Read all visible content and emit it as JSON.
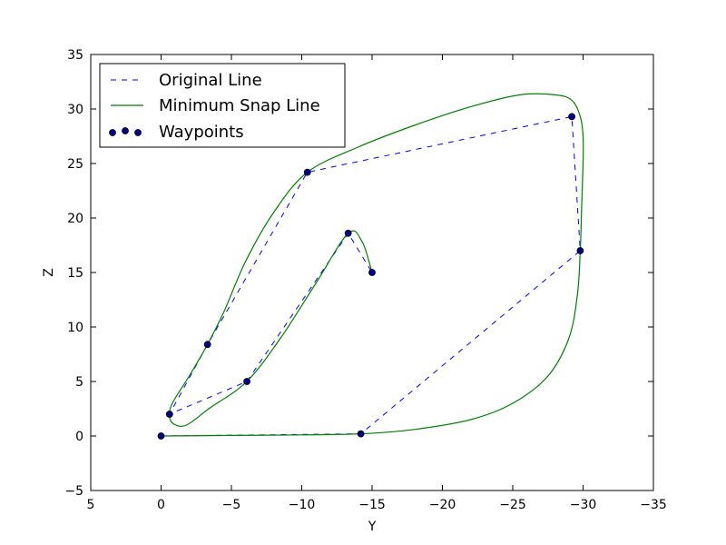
{
  "chart_data": {
    "type": "line",
    "xlabel": "Y",
    "ylabel": "Z",
    "xlim": [
      5,
      -35
    ],
    "ylim": [
      -5,
      35
    ],
    "xticks": [
      5,
      0,
      -5,
      -10,
      -15,
      -20,
      -25,
      -30,
      -35
    ],
    "yticks": [
      -5,
      0,
      5,
      10,
      15,
      20,
      25,
      30,
      35
    ],
    "grid": false,
    "legend_position": "top-left",
    "series": [
      {
        "name": "Original Line",
        "kind": "dashed-line",
        "color": "#0000ff",
        "x": [
          0,
          -14.2,
          -29.8,
          -29.2,
          -10.4,
          -3.3,
          -0.6,
          -6.1,
          -13.3,
          -15.0
        ],
        "y": [
          0,
          0.2,
          17.0,
          29.3,
          24.2,
          8.4,
          2.0,
          5.0,
          18.6,
          15.0
        ]
      },
      {
        "name": "Minimum Snap Line",
        "kind": "solid-line",
        "color": "#008000",
        "x": [
          0,
          -5,
          -10,
          -14.2,
          -18,
          -22,
          -25,
          -27.5,
          -29.0,
          -29.6,
          -29.8,
          -29.9,
          -30.0,
          -30.0,
          -29.8,
          -29.2,
          -28.0,
          -25.5,
          -22.0,
          -18.0,
          -14.0,
          -10.4,
          -8.0,
          -6.0,
          -4.5,
          -3.3,
          -2.0,
          -0.8,
          -0.6,
          -0.9,
          -1.8,
          -3.5,
          -6.1,
          -8.5,
          -11.0,
          -13.3,
          -14.3,
          -15.0
        ],
        "y": [
          0,
          0.05,
          0.1,
          0.2,
          0.6,
          1.5,
          3.0,
          5.5,
          9.0,
          13.0,
          17.0,
          21.0,
          25.0,
          27.5,
          29.3,
          30.8,
          31.3,
          31.3,
          30.2,
          28.5,
          26.5,
          24.2,
          20.5,
          16.0,
          11.5,
          8.4,
          5.5,
          3.0,
          1.8,
          1.1,
          1.0,
          2.6,
          5.0,
          9.0,
          14.0,
          18.6,
          17.8,
          15.0
        ]
      },
      {
        "name": "Waypoints",
        "kind": "scatter",
        "color": "#00008b",
        "x": [
          0,
          -14.2,
          -29.8,
          -29.2,
          -10.4,
          -3.3,
          -0.6,
          -6.1,
          -13.3,
          -15.0
        ],
        "y": [
          0,
          0.2,
          17.0,
          29.3,
          24.2,
          8.4,
          2.0,
          5.0,
          18.6,
          15.0
        ]
      }
    ]
  }
}
